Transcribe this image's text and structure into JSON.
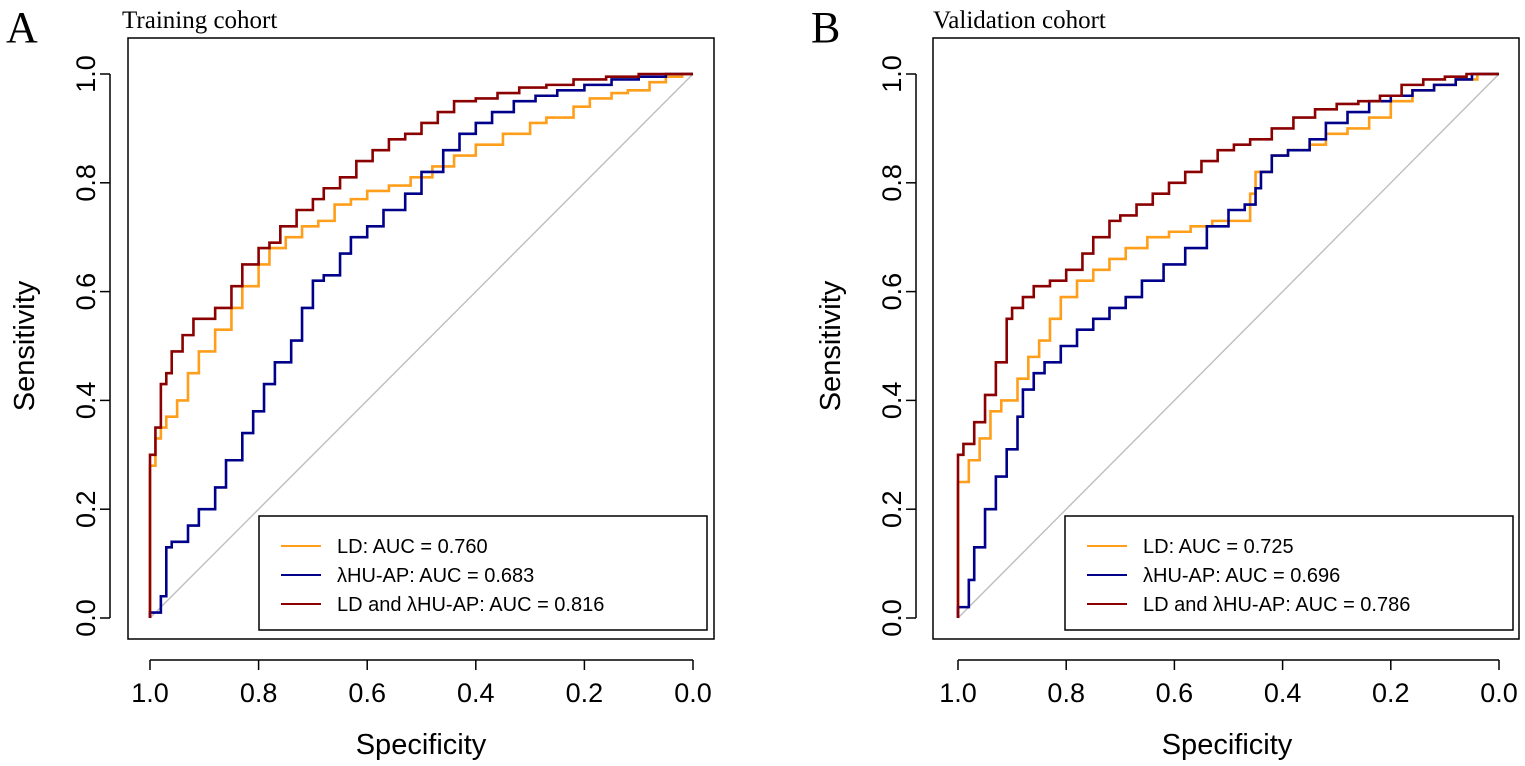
{
  "colors": {
    "ld": "#ff9e1b",
    "hu": "#00008b",
    "combined": "#8b0000",
    "diagonal": "#bebebe"
  },
  "chart_data": [
    {
      "type": "line",
      "panel": "A",
      "title": "Training cohort",
      "xlabel": "Specificity",
      "ylabel": "Sensitivity",
      "xlim": [
        1.0,
        0.0
      ],
      "ylim": [
        0.0,
        1.0
      ],
      "xticks": [
        "1.0",
        "0.8",
        "0.6",
        "0.4",
        "0.2",
        "0.0"
      ],
      "yticks": [
        "0.0",
        "0.2",
        "0.4",
        "0.6",
        "0.8",
        "1.0"
      ],
      "legend_position": "bottom-right",
      "series": [
        {
          "name": "LD",
          "legend": "LD:  AUC = 0.760",
          "color_key": "ld",
          "points": [
            [
              1.0,
              0.0
            ],
            [
              1.0,
              0.18
            ],
            [
              0.99,
              0.28
            ],
            [
              0.98,
              0.33
            ],
            [
              0.97,
              0.35
            ],
            [
              0.95,
              0.37
            ],
            [
              0.93,
              0.4
            ],
            [
              0.91,
              0.45
            ],
            [
              0.88,
              0.49
            ],
            [
              0.85,
              0.53
            ],
            [
              0.83,
              0.57
            ],
            [
              0.8,
              0.61
            ],
            [
              0.78,
              0.65
            ],
            [
              0.75,
              0.68
            ],
            [
              0.72,
              0.7
            ],
            [
              0.69,
              0.72
            ],
            [
              0.66,
              0.73
            ],
            [
              0.63,
              0.76
            ],
            [
              0.6,
              0.77
            ],
            [
              0.56,
              0.785
            ],
            [
              0.52,
              0.795
            ],
            [
              0.48,
              0.81
            ],
            [
              0.44,
              0.83
            ],
            [
              0.4,
              0.85
            ],
            [
              0.35,
              0.87
            ],
            [
              0.3,
              0.89
            ],
            [
              0.27,
              0.91
            ],
            [
              0.22,
              0.92
            ],
            [
              0.19,
              0.94
            ],
            [
              0.15,
              0.955
            ],
            [
              0.12,
              0.965
            ],
            [
              0.08,
              0.97
            ],
            [
              0.05,
              0.985
            ],
            [
              0.02,
              0.995
            ],
            [
              0.0,
              1.0
            ]
          ]
        },
        {
          "name": "λHU-AP",
          "legend": "λHU-AP:  AUC = 0.683",
          "color_key": "hu",
          "points": [
            [
              1.0,
              0.0
            ],
            [
              0.98,
              0.01
            ],
            [
              0.97,
              0.04
            ],
            [
              0.96,
              0.13
            ],
            [
              0.93,
              0.14
            ],
            [
              0.91,
              0.17
            ],
            [
              0.88,
              0.2
            ],
            [
              0.86,
              0.24
            ],
            [
              0.83,
              0.29
            ],
            [
              0.81,
              0.34
            ],
            [
              0.79,
              0.38
            ],
            [
              0.77,
              0.43
            ],
            [
              0.74,
              0.47
            ],
            [
              0.72,
              0.51
            ],
            [
              0.7,
              0.57
            ],
            [
              0.68,
              0.62
            ],
            [
              0.65,
              0.63
            ],
            [
              0.63,
              0.67
            ],
            [
              0.6,
              0.7
            ],
            [
              0.57,
              0.72
            ],
            [
              0.53,
              0.75
            ],
            [
              0.5,
              0.78
            ],
            [
              0.46,
              0.82
            ],
            [
              0.43,
              0.86
            ],
            [
              0.4,
              0.89
            ],
            [
              0.37,
              0.91
            ],
            [
              0.33,
              0.93
            ],
            [
              0.29,
              0.95
            ],
            [
              0.25,
              0.96
            ],
            [
              0.2,
              0.97
            ],
            [
              0.15,
              0.98
            ],
            [
              0.1,
              0.99
            ],
            [
              0.05,
              0.995
            ],
            [
              0.0,
              1.0
            ]
          ]
        },
        {
          "name": "LD and λHU-AP",
          "legend": "LD and λHU-AP:   AUC = 0.816",
          "color_key": "combined",
          "points": [
            [
              1.0,
              0.0
            ],
            [
              1.0,
              0.2
            ],
            [
              0.99,
              0.3
            ],
            [
              0.98,
              0.35
            ],
            [
              0.97,
              0.43
            ],
            [
              0.96,
              0.45
            ],
            [
              0.94,
              0.49
            ],
            [
              0.92,
              0.52
            ],
            [
              0.9,
              0.55
            ],
            [
              0.88,
              0.55
            ],
            [
              0.85,
              0.57
            ],
            [
              0.83,
              0.61
            ],
            [
              0.8,
              0.65
            ],
            [
              0.78,
              0.68
            ],
            [
              0.76,
              0.69
            ],
            [
              0.73,
              0.72
            ],
            [
              0.7,
              0.75
            ],
            [
              0.68,
              0.77
            ],
            [
              0.65,
              0.79
            ],
            [
              0.62,
              0.81
            ],
            [
              0.59,
              0.84
            ],
            [
              0.56,
              0.86
            ],
            [
              0.53,
              0.88
            ],
            [
              0.5,
              0.89
            ],
            [
              0.47,
              0.91
            ],
            [
              0.44,
              0.93
            ],
            [
              0.4,
              0.95
            ],
            [
              0.36,
              0.955
            ],
            [
              0.32,
              0.965
            ],
            [
              0.27,
              0.975
            ],
            [
              0.22,
              0.98
            ],
            [
              0.16,
              0.99
            ],
            [
              0.1,
              0.995
            ],
            [
              0.05,
              1.0
            ],
            [
              0.0,
              1.0
            ]
          ]
        }
      ]
    },
    {
      "type": "line",
      "panel": "B",
      "title": "Validation cohort",
      "xlabel": "Specificity",
      "ylabel": "Sensitivity",
      "xlim": [
        1.0,
        0.0
      ],
      "ylim": [
        0.0,
        1.0
      ],
      "xticks": [
        "1.0",
        "0.8",
        "0.6",
        "0.4",
        "0.2",
        "0.0"
      ],
      "yticks": [
        "0.0",
        "0.2",
        "0.4",
        "0.6",
        "0.8",
        "1.0"
      ],
      "legend_position": "bottom-right",
      "series": [
        {
          "name": "LD",
          "legend": "LD:  AUC = 0.725",
          "color_key": "ld",
          "points": [
            [
              1.0,
              0.0
            ],
            [
              1.0,
              0.22
            ],
            [
              0.98,
              0.25
            ],
            [
              0.96,
              0.29
            ],
            [
              0.94,
              0.33
            ],
            [
              0.92,
              0.38
            ],
            [
              0.89,
              0.4
            ],
            [
              0.87,
              0.44
            ],
            [
              0.85,
              0.48
            ],
            [
              0.83,
              0.51
            ],
            [
              0.81,
              0.55
            ],
            [
              0.78,
              0.59
            ],
            [
              0.75,
              0.62
            ],
            [
              0.72,
              0.64
            ],
            [
              0.69,
              0.66
            ],
            [
              0.65,
              0.68
            ],
            [
              0.61,
              0.7
            ],
            [
              0.57,
              0.71
            ],
            [
              0.53,
              0.72
            ],
            [
              0.49,
              0.73
            ],
            [
              0.46,
              0.73
            ],
            [
              0.45,
              0.78
            ],
            [
              0.42,
              0.82
            ],
            [
              0.39,
              0.85
            ],
            [
              0.35,
              0.86
            ],
            [
              0.32,
              0.87
            ],
            [
              0.28,
              0.89
            ],
            [
              0.24,
              0.9
            ],
            [
              0.2,
              0.92
            ],
            [
              0.16,
              0.95
            ],
            [
              0.12,
              0.97
            ],
            [
              0.08,
              0.98
            ],
            [
              0.04,
              0.99
            ],
            [
              0.0,
              1.0
            ]
          ]
        },
        {
          "name": "λHU-AP",
          "legend": "λHU-AP:  AUC = 0.696",
          "color_key": "hu",
          "points": [
            [
              1.0,
              0.0
            ],
            [
              0.98,
              0.02
            ],
            [
              0.97,
              0.07
            ],
            [
              0.95,
              0.13
            ],
            [
              0.93,
              0.2
            ],
            [
              0.91,
              0.26
            ],
            [
              0.89,
              0.31
            ],
            [
              0.88,
              0.37
            ],
            [
              0.86,
              0.42
            ],
            [
              0.84,
              0.45
            ],
            [
              0.81,
              0.47
            ],
            [
              0.78,
              0.5
            ],
            [
              0.75,
              0.53
            ],
            [
              0.72,
              0.55
            ],
            [
              0.69,
              0.57
            ],
            [
              0.66,
              0.59
            ],
            [
              0.62,
              0.62
            ],
            [
              0.58,
              0.65
            ],
            [
              0.54,
              0.68
            ],
            [
              0.5,
              0.72
            ],
            [
              0.47,
              0.75
            ],
            [
              0.45,
              0.76
            ],
            [
              0.44,
              0.79
            ],
            [
              0.42,
              0.82
            ],
            [
              0.39,
              0.85
            ],
            [
              0.35,
              0.86
            ],
            [
              0.32,
              0.88
            ],
            [
              0.28,
              0.91
            ],
            [
              0.24,
              0.93
            ],
            [
              0.2,
              0.95
            ],
            [
              0.16,
              0.96
            ],
            [
              0.12,
              0.97
            ],
            [
              0.08,
              0.98
            ],
            [
              0.05,
              0.99
            ],
            [
              0.0,
              1.0
            ]
          ]
        },
        {
          "name": "LD and λHU-AP",
          "legend": "LD and λHU-AP:   AUC = 0.786",
          "color_key": "combined",
          "points": [
            [
              1.0,
              0.0
            ],
            [
              1.0,
              0.24
            ],
            [
              0.99,
              0.3
            ],
            [
              0.97,
              0.32
            ],
            [
              0.95,
              0.36
            ],
            [
              0.93,
              0.41
            ],
            [
              0.91,
              0.47
            ],
            [
              0.9,
              0.55
            ],
            [
              0.88,
              0.57
            ],
            [
              0.86,
              0.59
            ],
            [
              0.83,
              0.61
            ],
            [
              0.8,
              0.62
            ],
            [
              0.77,
              0.64
            ],
            [
              0.75,
              0.67
            ],
            [
              0.72,
              0.7
            ],
            [
              0.7,
              0.73
            ],
            [
              0.67,
              0.74
            ],
            [
              0.64,
              0.76
            ],
            [
              0.61,
              0.78
            ],
            [
              0.58,
              0.8
            ],
            [
              0.55,
              0.82
            ],
            [
              0.52,
              0.84
            ],
            [
              0.49,
              0.86
            ],
            [
              0.46,
              0.87
            ],
            [
              0.42,
              0.88
            ],
            [
              0.38,
              0.9
            ],
            [
              0.34,
              0.92
            ],
            [
              0.3,
              0.935
            ],
            [
              0.26,
              0.945
            ],
            [
              0.22,
              0.95
            ],
            [
              0.18,
              0.96
            ],
            [
              0.14,
              0.98
            ],
            [
              0.1,
              0.99
            ],
            [
              0.06,
              0.995
            ],
            [
              0.0,
              1.0
            ]
          ]
        }
      ]
    }
  ]
}
